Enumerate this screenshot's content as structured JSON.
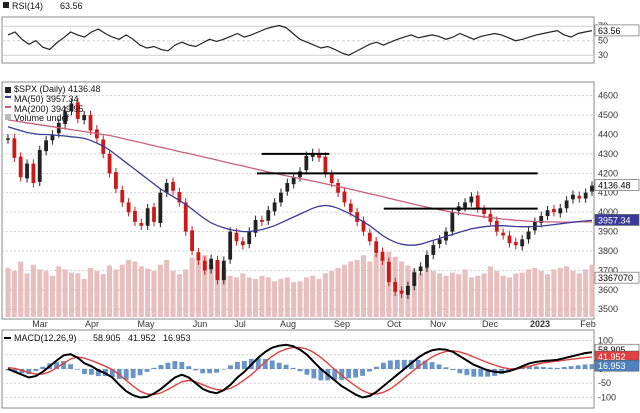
{
  "chart_data": {
    "type": "stock-chart",
    "symbol_label": "$SPX (Daily)",
    "last_price": "4136.48",
    "months": [
      "Mar",
      "Apr",
      "May",
      "Jun",
      "Jul",
      "Aug",
      "Sep",
      "Oct",
      "Nov",
      "Dec",
      "2023",
      "Feb"
    ],
    "colors": {
      "up": "#222222",
      "down": "#cc1a1a",
      "ma50": "#3a3a9a",
      "ma200": "#c8607a",
      "grid": "#cfcfcf",
      "border": "#888888",
      "volume": "#e4b4b4",
      "macd": "#000000",
      "signal": "#e04040",
      "hist": "#4f81bd"
    },
    "rsi_panel": {
      "label": "RSI(14)",
      "value": "63.56",
      "ticks": [
        "70",
        "50",
        "30"
      ],
      "tick_values": [
        70,
        50,
        30
      ],
      "ylim": [
        22,
        80
      ],
      "levels": [
        70,
        30
      ],
      "flag": "63.56",
      "series": [
        58,
        62,
        52,
        45,
        50,
        41,
        38,
        47,
        54,
        62,
        58,
        55,
        62,
        66,
        60,
        55,
        52,
        58,
        52,
        44,
        40,
        42,
        38,
        36,
        44,
        48,
        44,
        42,
        47,
        52,
        49,
        52,
        56,
        60,
        55,
        58,
        62,
        66,
        69,
        71,
        68,
        60,
        52,
        48,
        44,
        40,
        42,
        38,
        33,
        30,
        35,
        40,
        45,
        48,
        44,
        48,
        52,
        55,
        58,
        54,
        56,
        58,
        56,
        52,
        55,
        60,
        56,
        52,
        56,
        58,
        60,
        58,
        54,
        50,
        52,
        55,
        58,
        60,
        62,
        64,
        58,
        55,
        60,
        62,
        64
      ]
    },
    "price_panel": {
      "legend": [
        {
          "label": "$SPX (Daily) 4136.48",
          "color": "#222222"
        },
        {
          "label": "MA(50) 3957.34",
          "color": "#3a3a9a"
        },
        {
          "label": "MA(200) 3949.95",
          "color": "#c8607a"
        },
        {
          "label": "Volume undef",
          "color": "#bbbbbb"
        }
      ],
      "ticks": [
        "4600",
        "4500",
        "4400",
        "4300",
        "4200",
        "4100",
        "4000",
        "3900",
        "3800",
        "3700",
        "3600",
        "3500"
      ],
      "tick_values": [
        4600,
        4500,
        4400,
        4300,
        4200,
        4100,
        4000,
        3900,
        3800,
        3700,
        3600,
        3500
      ],
      "ylim": [
        3460,
        4660
      ],
      "flags": [
        {
          "label": "4136.48",
          "value": 4136.48,
          "bg": "#ffffff",
          "fg": "#000000"
        },
        {
          "label": "3957.34",
          "value": 3957.34,
          "bg": "#3a3a9a",
          "fg": "#ffffff"
        },
        {
          "label": "3367070",
          "value": 3660,
          "bg": "#ffffff",
          "fg": "#000000"
        }
      ],
      "resistance_lines": [
        {
          "from": 56,
          "to": 71,
          "value": 4300
        },
        {
          "from": 55,
          "to": 117,
          "value": 4200
        },
        {
          "from": 83,
          "to": 117,
          "value": 4018
        }
      ],
      "closes": [
        4380,
        4280,
        4180,
        4250,
        4150,
        4320,
        4370,
        4400,
        4460,
        4520,
        4560,
        4480,
        4500,
        4420,
        4380,
        4300,
        4200,
        4120,
        4050,
        4000,
        3950,
        3930,
        4020,
        3950,
        4100,
        4150,
        4110,
        4050,
        3900,
        3800,
        3750,
        3700,
        3760,
        3650,
        3750,
        3900,
        3850,
        3830,
        3900,
        3960,
        3950,
        4010,
        4050,
        4100,
        4150,
        4180,
        4210,
        4290,
        4305,
        4280,
        4200,
        4150,
        4100,
        4050,
        4000,
        3950,
        3900,
        3850,
        3790,
        3750,
        3640,
        3590,
        3580,
        3620,
        3690,
        3720,
        3780,
        3830,
        3860,
        3900,
        4000,
        4030,
        4050,
        4080,
        4020,
        3990,
        3950,
        3900,
        3880,
        3840,
        3830,
        3860,
        3900,
        3950,
        3980,
        4010,
        4000,
        4020,
        4060,
        4090,
        4070,
        4100,
        4136.48
      ],
      "ma50": [
        4440,
        4430,
        4420,
        4410,
        4405,
        4400,
        4400,
        4398,
        4395,
        4392,
        4388,
        4385,
        4380,
        4370,
        4355,
        4340,
        4320,
        4295,
        4270,
        4245,
        4220,
        4195,
        4170,
        4145,
        4120,
        4100,
        4080,
        4060,
        4040,
        4015,
        3990,
        3965,
        3945,
        3930,
        3920,
        3910,
        3905,
        3900,
        3900,
        3905,
        3910,
        3920,
        3930,
        3945,
        3960,
        3975,
        3990,
        4005,
        4020,
        4030,
        4035,
        4030,
        4020,
        4005,
        3990,
        3970,
        3950,
        3930,
        3905,
        3880,
        3860,
        3845,
        3835,
        3830,
        3830,
        3835,
        3845,
        3855,
        3865,
        3875,
        3885,
        3895,
        3905,
        3915,
        3920,
        3925,
        3928,
        3930,
        3930,
        3928,
        3926,
        3925,
        3925,
        3926,
        3928,
        3932,
        3936,
        3940,
        3944,
        3948,
        3952,
        3955,
        3957.34
      ],
      "ma200": [
        4475,
        4470,
        4465,
        4460,
        4455,
        4450,
        4445,
        4440,
        4435,
        4430,
        4425,
        4420,
        4415,
        4410,
        4405,
        4400,
        4395,
        4388,
        4380,
        4372,
        4365,
        4358,
        4350,
        4342,
        4335,
        4328,
        4320,
        4312,
        4305,
        4298,
        4290,
        4283,
        4276,
        4268,
        4260,
        4252,
        4245,
        4238,
        4230,
        4222,
        4215,
        4207,
        4200,
        4193,
        4186,
        4180,
        4173,
        4167,
        4160,
        4153,
        4146,
        4139,
        4132,
        4125,
        4118,
        4110,
        4102,
        4095,
        4088,
        4080,
        4072,
        4064,
        4056,
        4048,
        4040,
        4033,
        4026,
        4019,
        4012,
        4006,
        4000,
        3995,
        3990,
        3985,
        3980,
        3976,
        3972,
        3968,
        3964,
        3961,
        3958,
        3956,
        3954,
        3952,
        3951,
        3950,
        3950,
        3949,
        3949,
        3949,
        3950,
        3950,
        3949.95
      ],
      "volume": [
        62,
        58,
        70,
        55,
        66,
        60,
        58,
        52,
        64,
        60,
        56,
        55,
        48,
        62,
        58,
        54,
        65,
        60,
        66,
        72,
        70,
        64,
        61,
        58,
        66,
        72,
        58,
        54,
        60,
        75,
        70,
        78,
        66,
        70,
        62,
        52,
        50,
        55,
        50,
        48,
        52,
        50,
        45,
        48,
        50,
        44,
        45,
        50,
        52,
        48,
        55,
        58,
        62,
        66,
        70,
        72,
        78,
        70,
        80,
        75,
        82,
        76,
        70,
        65,
        60,
        56,
        62,
        58,
        55,
        52,
        56,
        54,
        60,
        50,
        52,
        55,
        64,
        58,
        52,
        50,
        55,
        56,
        60,
        62,
        58,
        54,
        60,
        62,
        64,
        58,
        55,
        60,
        66
      ]
    },
    "macd_panel": {
      "label": "MACD(12,26,9)",
      "values": [
        "58.905",
        "41.952",
        "16.953"
      ],
      "ticks": [
        "100",
        "50",
        "0",
        "-50",
        "-100"
      ],
      "tick_values": [
        100,
        50,
        0,
        -50,
        -100
      ],
      "ylim": [
        -130,
        130
      ],
      "flags": [
        {
          "label": "58.905",
          "value": 58.905,
          "bg": "#ffffff",
          "fg": "#000000"
        },
        {
          "label": "41.952",
          "value": 41.952,
          "bg": "#e04040",
          "fg": "#ffffff"
        },
        {
          "label": "16.953",
          "value": 16.953,
          "bg": "#4f81bd",
          "fg": "#ffffff"
        }
      ],
      "macd": [
        0,
        -10,
        -20,
        -30,
        -25,
        -10,
        10,
        30,
        48,
        52,
        40,
        20,
        10,
        -5,
        -15,
        -30,
        -55,
        -78,
        -92,
        -100,
        -98,
        -86,
        -70,
        -50,
        -30,
        -20,
        -30,
        -50,
        -70,
        -80,
        -85,
        -75,
        -55,
        -30,
        -10,
        15,
        40,
        60,
        75,
        82,
        85,
        80,
        68,
        50,
        25,
        0,
        -20,
        -40,
        -60,
        -75,
        -90,
        -100,
        -95,
        -80,
        -60,
        -40,
        -20,
        0,
        20,
        40,
        55,
        66,
        70,
        68,
        60,
        45,
        30,
        15,
        5,
        -5,
        -10,
        -12,
        -8,
        0,
        10,
        20,
        25,
        28,
        30,
        32,
        38,
        44,
        50,
        56,
        58.905
      ],
      "signal": [
        5,
        2,
        -5,
        -12,
        -18,
        -18,
        -10,
        5,
        20,
        35,
        42,
        38,
        30,
        20,
        10,
        -2,
        -20,
        -40,
        -60,
        -78,
        -88,
        -90,
        -84,
        -72,
        -58,
        -45,
        -40,
        -45,
        -55,
        -65,
        -72,
        -74,
        -68,
        -55,
        -38,
        -20,
        2,
        25,
        45,
        60,
        70,
        76,
        76,
        70,
        58,
        40,
        20,
        -2,
        -22,
        -42,
        -60,
        -76,
        -86,
        -88,
        -82,
        -70,
        -52,
        -32,
        -12,
        8,
        26,
        42,
        54,
        62,
        64,
        60,
        52,
        42,
        32,
        22,
        14,
        6,
        1,
        0,
        4,
        10,
        16,
        21,
        25,
        28,
        31,
        34,
        37,
        40,
        41.952
      ]
    }
  }
}
